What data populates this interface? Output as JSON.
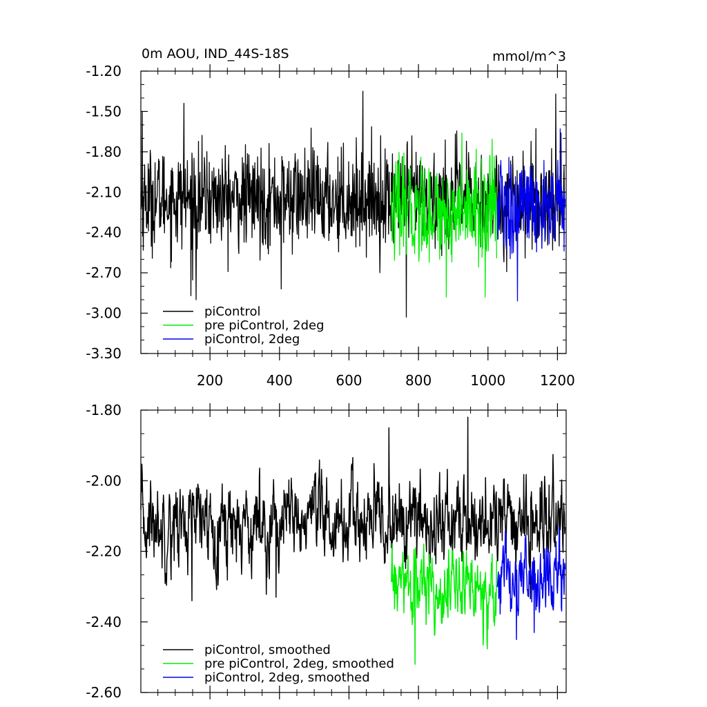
{
  "chart_data": [
    {
      "type": "line",
      "title": "0m AOU, IND_44S-18S",
      "units": "mmol/m^3",
      "xlim": [
        1,
        1225
      ],
      "ylim": [
        -3.3,
        -1.2
      ],
      "xticks": [
        200,
        400,
        600,
        800,
        1000,
        1200
      ],
      "xtick_labels": [
        "200",
        "400",
        "600",
        "800",
        "1000",
        "1200"
      ],
      "yticks": [
        -1.2,
        -1.5,
        -1.8,
        -2.1,
        -2.4,
        -2.7,
        -3.0,
        -3.3
      ],
      "ytick_labels": [
        "-1.20",
        "-1.50",
        "-1.80",
        "-2.10",
        "-2.40",
        "-2.70",
        "-3.00",
        "-3.30"
      ],
      "legend_position": "bottom-left",
      "series": [
        {
          "name": "piControl",
          "color": "#000000",
          "x_range": [
            1,
            1220
          ],
          "mean": -2.15,
          "std": 0.2,
          "spikes": [
            [
              5,
              -1.5
            ],
            [
              125,
              -1.44
            ],
            [
              160,
              -2.9
            ],
            [
              640,
              -1.35
            ],
            [
              765,
              -3.03
            ],
            [
              405,
              -2.82
            ],
            [
              1195,
              -1.37
            ],
            [
              145,
              -2.87
            ]
          ]
        },
        {
          "name": "pre piControl, 2deg",
          "color": "#00ee00",
          "x_range": [
            722,
            1025
          ],
          "mean": -2.24,
          "std": 0.2,
          "spikes": [
            [
              925,
              -1.66
            ],
            [
              880,
              -2.88
            ],
            [
              992,
              -2.88
            ]
          ]
        },
        {
          "name": "piControl, 2deg",
          "color": "#0000ee",
          "x_range": [
            1027,
            1222
          ],
          "mean": -2.22,
          "std": 0.2,
          "spikes": [
            [
              1208,
              -1.63
            ],
            [
              1085,
              -2.91
            ]
          ]
        }
      ]
    },
    {
      "type": "line",
      "xlim": [
        1,
        1225
      ],
      "ylim": [
        -2.6,
        -1.8
      ],
      "xticks": [
        200,
        400,
        600,
        800,
        1000,
        1200
      ],
      "yticks": [
        -1.8,
        -2.0,
        -2.2,
        -2.4,
        -2.6
      ],
      "ytick_labels": [
        "-1.80",
        "-2.00",
        "-2.20",
        "-2.40",
        "-2.60"
      ],
      "legend_position": "bottom-left",
      "series": [
        {
          "name": "piControl, smoothed",
          "color": "#000000",
          "x_range": [
            1,
            1222
          ],
          "mean": -2.12,
          "std": 0.07,
          "spikes": [
            [
              942,
              -1.82
            ],
            [
              715,
              -1.85
            ],
            [
              148,
              -2.34
            ],
            [
              390,
              -2.33
            ]
          ]
        },
        {
          "name": "pre piControl, 2deg, smoothed",
          "color": "#00ee00",
          "x_range": [
            722,
            1025
          ],
          "mean": -2.3,
          "std": 0.06,
          "spikes": [
            [
              790,
              -2.52
            ],
            [
              1000,
              -2.42
            ]
          ]
        },
        {
          "name": "piControl, 2deg, smoothed",
          "color": "#0000ee",
          "x_range": [
            1027,
            1222
          ],
          "mean": -2.28,
          "std": 0.06,
          "spikes": [
            [
              1082,
              -2.45
            ],
            [
              1133,
              -2.43
            ]
          ]
        }
      ]
    }
  ]
}
